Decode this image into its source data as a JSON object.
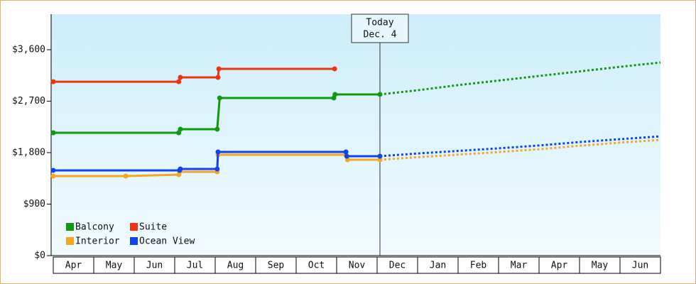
{
  "chart_data": {
    "type": "line",
    "categories": [
      "Apr",
      "May",
      "Jun",
      "Jul",
      "Aug",
      "Sep",
      "Oct",
      "Nov",
      "Dec",
      "Jan",
      "Feb",
      "Mar",
      "Apr",
      "May",
      "Jun"
    ],
    "xlim": [
      0,
      15
    ],
    "ylim": [
      0,
      4220
    ],
    "yticks": [
      {
        "value": 0,
        "label": "$0"
      },
      {
        "value": 900,
        "label": "$900"
      },
      {
        "value": 1800,
        "label": "$1,800"
      },
      {
        "value": 2700,
        "label": "$2,700"
      },
      {
        "value": 3600,
        "label": "$3,600"
      }
    ],
    "legend": "bottom-left",
    "annotation": {
      "x": 8.07,
      "lines": [
        "Today",
        "Dec. 4"
      ]
    },
    "series": [
      {
        "name": "Balcony",
        "color": "#119911",
        "x": [
          0,
          3.1,
          3.14,
          4.05,
          4.11,
          6.93,
          6.96,
          8.07
        ],
        "values": [
          2147,
          2147,
          2210,
          2210,
          2756,
          2756,
          2818,
          2818
        ],
        "forecast": {
          "x": [
            8.07,
            9,
            10,
            11,
            12,
            13,
            14,
            15
          ],
          "values": [
            2818,
            2890,
            2980,
            3060,
            3140,
            3220,
            3300,
            3376
          ]
        }
      },
      {
        "name": "Suite",
        "color": "#ee3311",
        "x": [
          0,
          3.1,
          3.14,
          4.07,
          4.09,
          6.95
        ],
        "values": [
          3040,
          3040,
          3115,
          3115,
          3265,
          3265
        ]
      },
      {
        "name": "Interior",
        "color": "#f5a623",
        "x": [
          0,
          1.79,
          3.1,
          3.12,
          4.05,
          4.07,
          7.23,
          7.27,
          8.07
        ],
        "values": [
          1390,
          1390,
          1415,
          1465,
          1465,
          1763,
          1763,
          1676,
          1676
        ],
        "forecast": {
          "x": [
            8.07,
            9,
            10,
            11,
            12,
            13,
            14,
            15
          ],
          "values": [
            1676,
            1720,
            1765,
            1810,
            1860,
            1920,
            1975,
            2023
          ]
        }
      },
      {
        "name": "Ocean View",
        "color": "#1144ee",
        "x": [
          0,
          3.12,
          3.14,
          4.05,
          4.07,
          7.23,
          7.25,
          8.07
        ],
        "values": [
          1490,
          1490,
          1514,
          1514,
          1812,
          1812,
          1738,
          1738
        ],
        "forecast": {
          "x": [
            8.07,
            9,
            10,
            11,
            12,
            13,
            14,
            15
          ],
          "values": [
            1738,
            1785,
            1830,
            1875,
            1925,
            1985,
            2035,
            2085
          ]
        }
      }
    ]
  }
}
